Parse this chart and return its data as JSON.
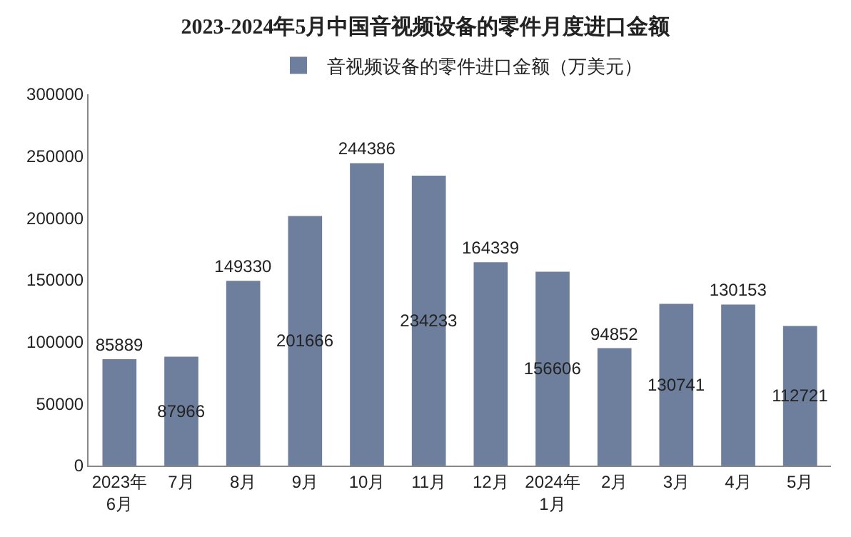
{
  "chart_data": {
    "type": "bar",
    "title": "2023-2024年5月中国音视频设备的零件月度进口金额",
    "categories": [
      "2023年\n6月",
      "7月",
      "8月",
      "9月",
      "10月",
      "11月",
      "12月",
      "2024年\n1月",
      "2月",
      "3月",
      "4月",
      "5月"
    ],
    "series": [
      {
        "name": "音视频设备的零件进口金额（万美元）",
        "color": "#6e7f9e",
        "values": [
          85889,
          87966,
          149330,
          201666,
          244386,
          234233,
          164339,
          156606,
          94852,
          130741,
          130153,
          112721
        ]
      }
    ],
    "ylim": [
      0,
      300000
    ],
    "yticks": [
      0,
      50000,
      100000,
      150000,
      200000,
      250000,
      300000
    ],
    "grid": false,
    "legend": "top",
    "data_labels": true
  }
}
